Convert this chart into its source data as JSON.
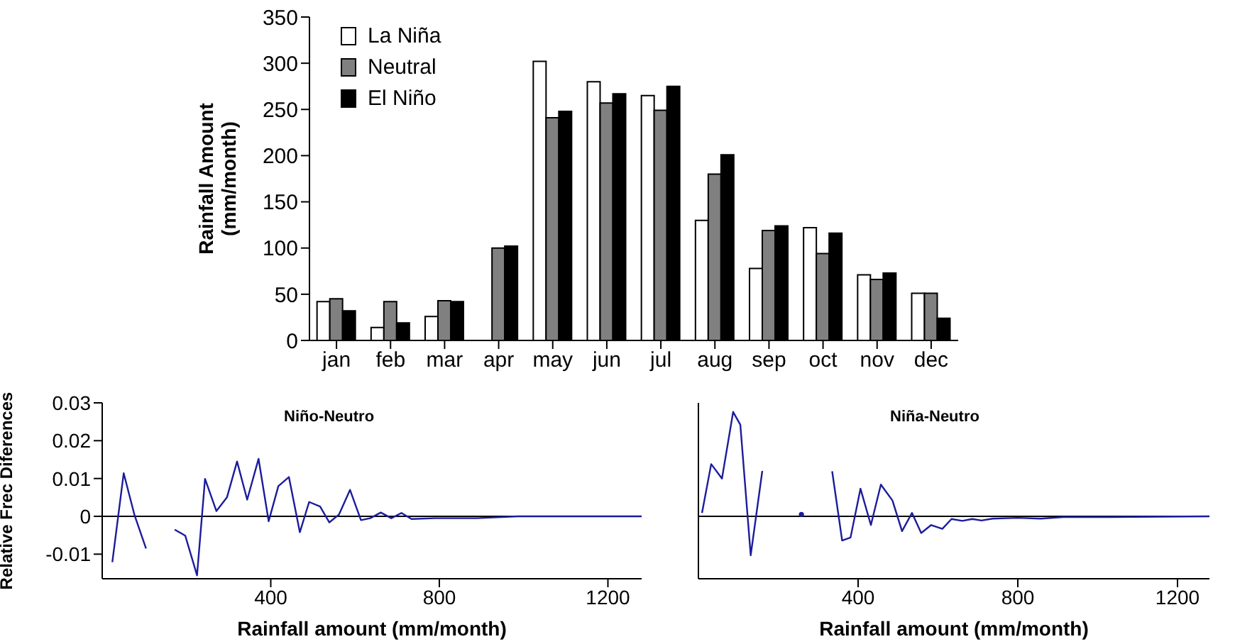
{
  "chart_data": [
    {
      "type": "bar",
      "ylabel": "Rainfall Amount\n(mm/month)",
      "categories": [
        "jan",
        "feb",
        "mar",
        "apr",
        "may",
        "jun",
        "jul",
        "aug",
        "sep",
        "oct",
        "nov",
        "dec"
      ],
      "ylim": [
        0,
        350
      ],
      "yticks": [
        0,
        50,
        100,
        150,
        200,
        250,
        300,
        350
      ],
      "legend": "top left",
      "series": [
        {
          "name": "La Niña",
          "color": "#ffffff",
          "values": [
            42,
            14,
            26,
            null,
            302,
            280,
            265,
            130,
            78,
            122,
            71,
            51
          ]
        },
        {
          "name": "Neutral",
          "color": "#808080",
          "values": [
            45,
            42,
            43,
            100,
            241,
            257,
            249,
            180,
            119,
            94,
            66,
            51
          ]
        },
        {
          "name": "El Niño",
          "color": "#000000",
          "values": [
            32,
            19,
            42,
            102,
            248,
            267,
            275,
            201,
            124,
            116,
            73,
            24
          ]
        }
      ]
    },
    {
      "type": "line",
      "title": "Niño-Neutro",
      "xlabel": "Rainfall amount (mm/month)",
      "ylabel": "Relative Frec Diferences",
      "xlim": [
        0,
        1280
      ],
      "xticks": [
        400,
        800,
        1200
      ],
      "ylim": [
        -0.0165,
        0.03
      ],
      "yticks": [
        -0.01,
        0,
        0.01,
        0.02,
        0.03
      ],
      "series": [
        {
          "color": "#1c1c9c",
          "x": [
            24,
            51,
            77,
            104,
            131,
            159,
            172,
            197,
            225,
            244,
            271,
            296,
            320,
            344,
            371,
            395,
            418,
            443,
            469,
            491,
            517,
            539,
            562,
            588,
            614,
            636,
            661,
            686,
            710,
            734,
            789,
            888,
            986,
            1280
          ],
          "values": [
            -0.0121,
            0.0114,
            0.0002,
            -0.0085,
            null,
            null,
            -0.0035,
            -0.0051,
            -0.0156,
            0.0099,
            0.0014,
            0.005,
            0.0145,
            0.0044,
            0.0152,
            -0.0013,
            0.008,
            0.0104,
            -0.0042,
            0.0038,
            0.0026,
            -0.0016,
            0.0005,
            0.007,
            -0.001,
            -0.0005,
            0.001,
            -0.0005,
            0.0009,
            -0.0007,
            -0.0005,
            -0.0005,
            0,
            0
          ]
        }
      ]
    },
    {
      "type": "line",
      "title": "Niña-Neutro",
      "xlabel": "Rainfall amount (mm/month)",
      "xlim": [
        0,
        1280
      ],
      "xticks": [
        400,
        800,
        1200
      ],
      "ylim": [
        -0.0165,
        0.03
      ],
      "yticks": [
        -0.01,
        0,
        0.01,
        0.02,
        0.03
      ],
      "tick_labels": "x",
      "series": [
        {
          "color": "#1c1c9c",
          "x": [
            9,
            32,
            59,
            87,
            105,
            131,
            160,
            208,
            258,
            280,
            311,
            335,
            360,
            381,
            406,
            432,
            457,
            486,
            510,
            535,
            558,
            583,
            611,
            634,
            661,
            686,
            709,
            737,
            800,
            857,
            914,
            1029,
            1280
          ],
          "values": [
            0.0009,
            0.0138,
            0.01,
            0.0276,
            0.0242,
            -0.0103,
            0.012,
            null,
            0.0005,
            null,
            null,
            0.0119,
            -0.0064,
            -0.0056,
            0.0073,
            -0.0023,
            0.0084,
            0.0042,
            -0.0039,
            0.0009,
            -0.0044,
            -0.0023,
            -0.0033,
            -0.0007,
            -0.0012,
            -0.0007,
            -0.0011,
            -0.0006,
            -0.0004,
            -0.0006,
            -0.0002,
            -0.0002,
            0
          ]
        }
      ]
    }
  ]
}
